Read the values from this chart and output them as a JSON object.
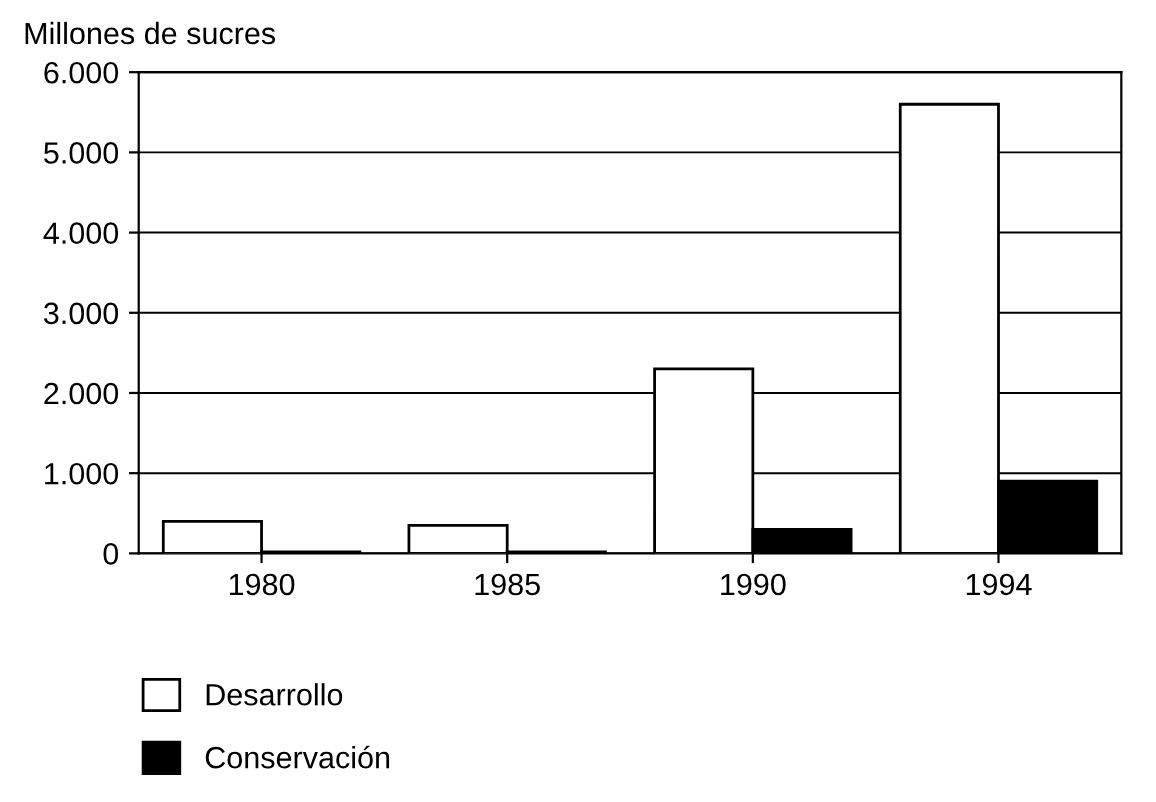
{
  "chart_data": {
    "type": "bar",
    "ylabel": "Millones de sucres",
    "categories": [
      "1980",
      "1985",
      "1990",
      "1994"
    ],
    "series": [
      {
        "name": "Desarrollo",
        "color": "#ffffff",
        "values": [
          400,
          350,
          2300,
          5600
        ]
      },
      {
        "name": "Conservación",
        "color": "#000000",
        "values": [
          20,
          20,
          300,
          900
        ]
      }
    ],
    "ylim": [
      0,
      6000
    ],
    "yticks": [
      0,
      {
        "value": 1000,
        "label": "1.000"
      },
      {
        "value": 2000,
        "label": "2.000"
      },
      {
        "value": 3000,
        "label": "3.000"
      },
      {
        "value": 4000,
        "label": "4.000"
      },
      {
        "value": 5000,
        "label": "5.000"
      },
      {
        "value": 6000,
        "label": "6.000"
      }
    ],
    "grid": "y",
    "legend": "bottom left"
  }
}
